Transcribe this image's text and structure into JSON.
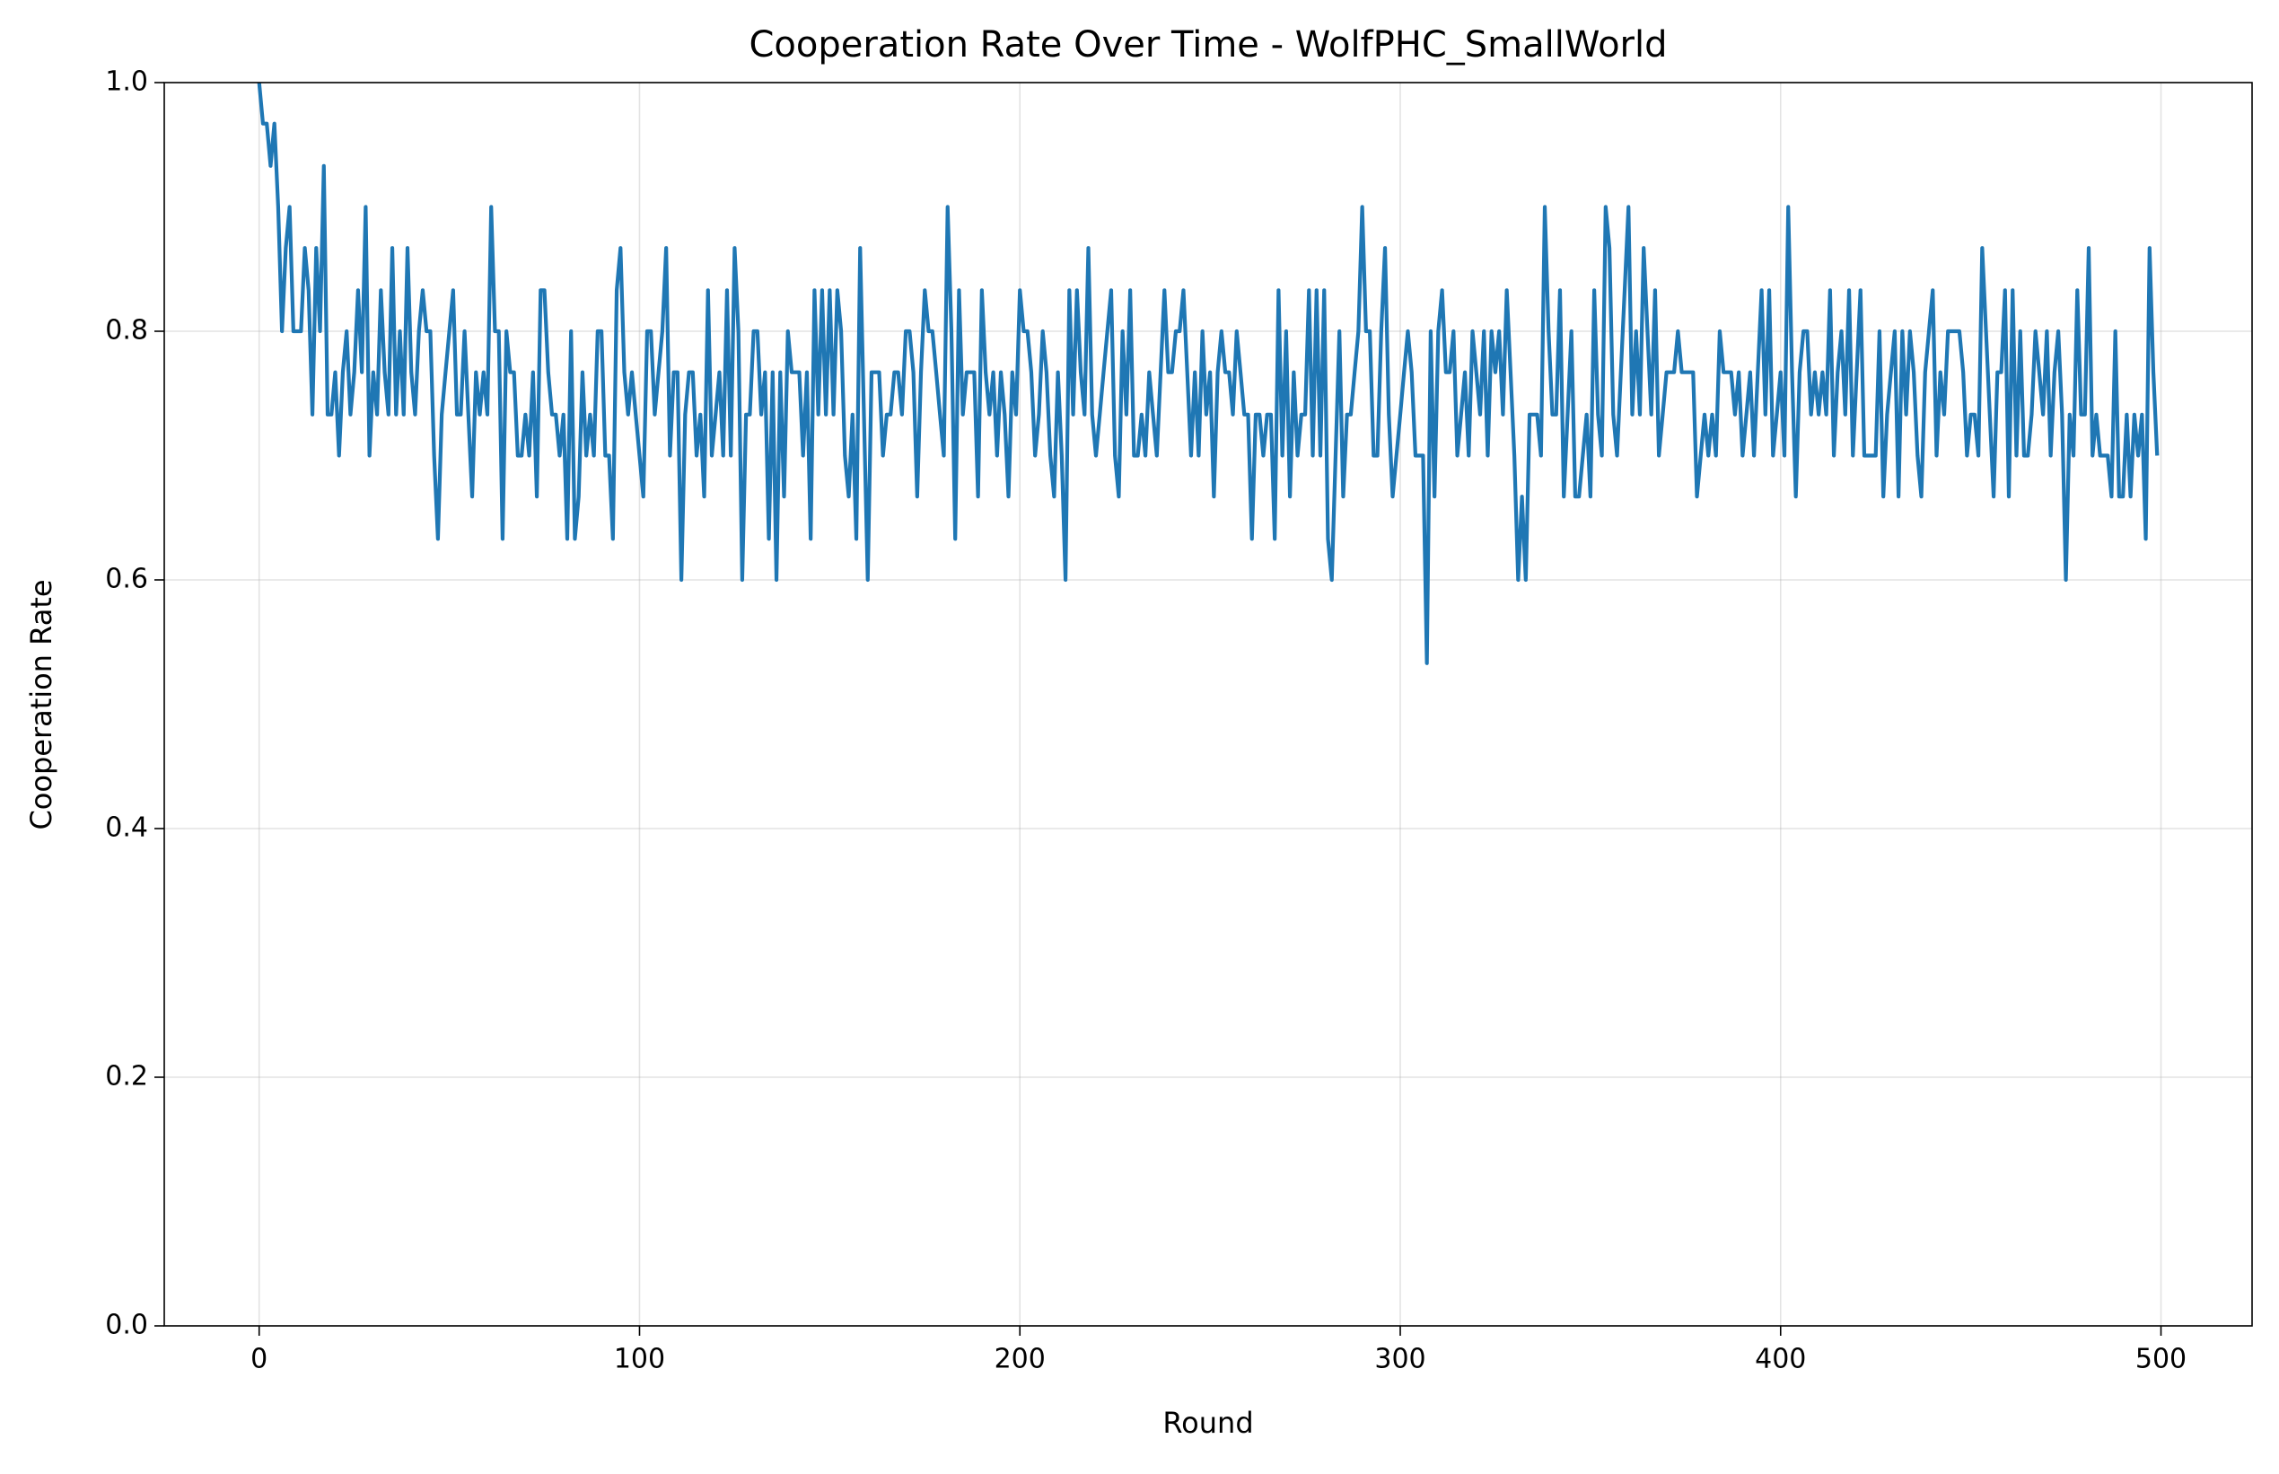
{
  "chart_data": {
    "type": "line",
    "title": "Cooperation Rate Over Time - WolfPHC_SmallWorld",
    "x_label": "Round",
    "y_label": "Cooperation Rate",
    "xlim": [
      -24.95,
      523.95
    ],
    "xticks": [
      0,
      100,
      200,
      300,
      400,
      500
    ],
    "ylim": [
      0,
      1
    ],
    "yticks": [
      {
        "value": 0,
        "label": "0.0"
      },
      0.2,
      0.4,
      0.6,
      0.8,
      {
        "value": 1,
        "label": "1.0"
      }
    ],
    "grid": true,
    "x": [
      0,
      1,
      2,
      3,
      4,
      5,
      6,
      7,
      8,
      9,
      10,
      11,
      12,
      13,
      14,
      15,
      16,
      17,
      18,
      19,
      20,
      21,
      22,
      23,
      24,
      25,
      26,
      27,
      28,
      29,
      30,
      31,
      32,
      33,
      34,
      35,
      36,
      37,
      38,
      39,
      40,
      41,
      42,
      43,
      44,
      45,
      46,
      47,
      48,
      49,
      50,
      51,
      52,
      53,
      54,
      55,
      56,
      57,
      58,
      59,
      60,
      61,
      62,
      63,
      64,
      65,
      66,
      67,
      68,
      69,
      70,
      71,
      72,
      73,
      74,
      75,
      76,
      77,
      78,
      79,
      80,
      81,
      82,
      83,
      84,
      85,
      86,
      87,
      88,
      89,
      90,
      91,
      92,
      93,
      94,
      95,
      96,
      97,
      98,
      99,
      100,
      101,
      102,
      103,
      104,
      105,
      106,
      107,
      108,
      109,
      110,
      111,
      112,
      113,
      114,
      115,
      116,
      117,
      118,
      119,
      120,
      121,
      122,
      123,
      124,
      125,
      126,
      127,
      128,
      129,
      130,
      131,
      132,
      133,
      134,
      135,
      136,
      137,
      138,
      139,
      140,
      141,
      142,
      143,
      144,
      145,
      146,
      147,
      148,
      149,
      150,
      151,
      152,
      153,
      154,
      155,
      156,
      157,
      158,
      159,
      160,
      161,
      162,
      163,
      164,
      165,
      166,
      167,
      168,
      169,
      170,
      171,
      172,
      173,
      174,
      175,
      176,
      177,
      178,
      179,
      180,
      181,
      182,
      183,
      184,
      185,
      186,
      187,
      188,
      189,
      190,
      191,
      192,
      193,
      194,
      195,
      196,
      197,
      198,
      199,
      200,
      201,
      202,
      203,
      204,
      205,
      206,
      207,
      208,
      209,
      210,
      211,
      212,
      213,
      214,
      215,
      216,
      217,
      218,
      219,
      220,
      221,
      222,
      223,
      224,
      225,
      226,
      227,
      228,
      229,
      230,
      231,
      232,
      233,
      234,
      235,
      236,
      237,
      238,
      239,
      240,
      241,
      242,
      243,
      244,
      245,
      246,
      247,
      248,
      249,
      250,
      251,
      252,
      253,
      254,
      255,
      256,
      257,
      258,
      259,
      260,
      261,
      262,
      263,
      264,
      265,
      266,
      267,
      268,
      269,
      270,
      271,
      272,
      273,
      274,
      275,
      276,
      277,
      278,
      279,
      280,
      281,
      282,
      283,
      284,
      285,
      286,
      287,
      288,
      289,
      290,
      291,
      292,
      293,
      294,
      295,
      296,
      297,
      298,
      299,
      300,
      301,
      302,
      303,
      304,
      305,
      306,
      307,
      308,
      309,
      310,
      311,
      312,
      313,
      314,
      315,
      316,
      317,
      318,
      319,
      320,
      321,
      322,
      323,
      324,
      325,
      326,
      327,
      328,
      329,
      330,
      331,
      332,
      333,
      334,
      335,
      336,
      337,
      338,
      339,
      340,
      341,
      342,
      343,
      344,
      345,
      346,
      347,
      348,
      349,
      350,
      351,
      352,
      353,
      354,
      355,
      356,
      357,
      358,
      359,
      360,
      361,
      362,
      363,
      364,
      365,
      366,
      367,
      368,
      369,
      370,
      371,
      372,
      373,
      374,
      375,
      376,
      377,
      378,
      379,
      380,
      381,
      382,
      383,
      384,
      385,
      386,
      387,
      388,
      389,
      390,
      391,
      392,
      393,
      394,
      395,
      396,
      397,
      398,
      399,
      400,
      401,
      402,
      403,
      404,
      405,
      406,
      407,
      408,
      409,
      410,
      411,
      412,
      413,
      414,
      415,
      416,
      417,
      418,
      419,
      420,
      421,
      422,
      423,
      424,
      425,
      426,
      427,
      428,
      429,
      430,
      431,
      432,
      433,
      434,
      435,
      436,
      437,
      438,
      439,
      440,
      441,
      442,
      443,
      444,
      445,
      446,
      447,
      448,
      449,
      450,
      451,
      452,
      453,
      454,
      455,
      456,
      457,
      458,
      459,
      460,
      461,
      462,
      463,
      464,
      465,
      466,
      467,
      468,
      469,
      470,
      471,
      472,
      473,
      474,
      475,
      476,
      477,
      478,
      479,
      480,
      481,
      482,
      483,
      484,
      485,
      486,
      487,
      488,
      489,
      490,
      491,
      492,
      493,
      494,
      495,
      496,
      497,
      498,
      499
    ],
    "series": [
      {
        "color": "#1f77b4",
        "values": [
          1.0,
          0.967,
          0.967,
          0.933,
          0.967,
          0.9,
          0.8,
          0.867,
          0.9,
          0.8,
          0.8,
          0.8,
          0.867,
          0.833,
          0.733,
          0.867,
          0.8,
          0.933,
          0.733,
          0.733,
          0.767,
          0.7,
          0.767,
          0.8,
          0.733,
          0.767,
          0.833,
          0.767,
          0.9,
          0.7,
          0.767,
          0.733,
          0.833,
          0.767,
          0.733,
          0.867,
          0.733,
          0.8,
          0.733,
          0.867,
          0.767,
          0.733,
          0.8,
          0.833,
          0.8,
          0.8,
          0.7,
          0.633,
          0.733,
          0.767,
          0.8,
          0.833,
          0.733,
          0.733,
          0.8,
          0.733,
          0.667,
          0.767,
          0.733,
          0.767,
          0.733,
          0.9,
          0.8,
          0.8,
          0.633,
          0.8,
          0.767,
          0.767,
          0.7,
          0.7,
          0.733,
          0.7,
          0.767,
          0.667,
          0.833,
          0.833,
          0.767,
          0.733,
          0.733,
          0.7,
          0.733,
          0.633,
          0.8,
          0.633,
          0.667,
          0.767,
          0.7,
          0.733,
          0.7,
          0.8,
          0.8,
          0.7,
          0.7,
          0.633,
          0.833,
          0.867,
          0.767,
          0.733,
          0.767,
          0.733,
          0.7,
          0.667,
          0.8,
          0.8,
          0.733,
          0.767,
          0.8,
          0.867,
          0.7,
          0.767,
          0.767,
          0.6,
          0.733,
          0.767,
          0.767,
          0.7,
          0.733,
          0.667,
          0.833,
          0.7,
          0.733,
          0.767,
          0.7,
          0.833,
          0.7,
          0.867,
          0.8,
          0.6,
          0.733,
          0.733,
          0.8,
          0.8,
          0.733,
          0.767,
          0.633,
          0.767,
          0.6,
          0.767,
          0.667,
          0.8,
          0.767,
          0.767,
          0.767,
          0.7,
          0.767,
          0.633,
          0.833,
          0.733,
          0.833,
          0.733,
          0.833,
          0.733,
          0.833,
          0.8,
          0.7,
          0.667,
          0.733,
          0.633,
          0.867,
          0.733,
          0.6,
          0.767,
          0.767,
          0.767,
          0.7,
          0.733,
          0.733,
          0.767,
          0.767,
          0.733,
          0.8,
          0.8,
          0.767,
          0.667,
          0.767,
          0.833,
          0.8,
          0.8,
          0.767,
          0.733,
          0.7,
          0.9,
          0.8,
          0.633,
          0.833,
          0.733,
          0.767,
          0.767,
          0.767,
          0.667,
          0.833,
          0.767,
          0.733,
          0.767,
          0.7,
          0.767,
          0.733,
          0.667,
          0.767,
          0.733,
          0.833,
          0.8,
          0.8,
          0.767,
          0.7,
          0.733,
          0.8,
          0.767,
          0.7,
          0.667,
          0.767,
          0.7,
          0.6,
          0.833,
          0.733,
          0.833,
          0.767,
          0.733,
          0.867,
          0.733,
          0.7,
          0.733,
          0.767,
          0.8,
          0.833,
          0.7,
          0.667,
          0.8,
          0.733,
          0.833,
          0.7,
          0.7,
          0.733,
          0.7,
          0.767,
          0.733,
          0.7,
          0.767,
          0.833,
          0.767,
          0.767,
          0.8,
          0.8,
          0.833,
          0.767,
          0.7,
          0.767,
          0.7,
          0.8,
          0.733,
          0.767,
          0.667,
          0.767,
          0.8,
          0.767,
          0.767,
          0.733,
          0.8,
          0.767,
          0.733,
          0.733,
          0.633,
          0.733,
          0.733,
          0.7,
          0.733,
          0.733,
          0.633,
          0.833,
          0.7,
          0.8,
          0.667,
          0.767,
          0.7,
          0.733,
          0.733,
          0.833,
          0.7,
          0.833,
          0.7,
          0.833,
          0.633,
          0.6,
          0.7,
          0.8,
          0.667,
          0.733,
          0.733,
          0.767,
          0.8,
          0.9,
          0.8,
          0.8,
          0.7,
          0.7,
          0.8,
          0.867,
          0.733,
          0.667,
          0.7,
          0.733,
          0.767,
          0.8,
          0.767,
          0.7,
          0.7,
          0.7,
          0.533,
          0.8,
          0.667,
          0.8,
          0.833,
          0.767,
          0.767,
          0.8,
          0.7,
          0.733,
          0.767,
          0.7,
          0.8,
          0.767,
          0.733,
          0.8,
          0.7,
          0.8,
          0.767,
          0.8,
          0.733,
          0.833,
          0.767,
          0.7,
          0.6,
          0.667,
          0.6,
          0.733,
          0.733,
          0.733,
          0.7,
          0.9,
          0.8,
          0.733,
          0.733,
          0.833,
          0.667,
          0.733,
          0.8,
          0.667,
          0.667,
          0.7,
          0.733,
          0.667,
          0.833,
          0.733,
          0.7,
          0.9,
          0.867,
          0.733,
          0.7,
          0.767,
          0.833,
          0.9,
          0.733,
          0.8,
          0.733,
          0.867,
          0.8,
          0.733,
          0.833,
          0.7,
          0.733,
          0.767,
          0.767,
          0.767,
          0.8,
          0.767,
          0.767,
          0.767,
          0.767,
          0.667,
          0.7,
          0.733,
          0.7,
          0.733,
          0.7,
          0.8,
          0.767,
          0.767,
          0.767,
          0.733,
          0.767,
          0.7,
          0.733,
          0.767,
          0.7,
          0.767,
          0.833,
          0.733,
          0.833,
          0.7,
          0.733,
          0.767,
          0.7,
          0.9,
          0.767,
          0.667,
          0.767,
          0.8,
          0.8,
          0.733,
          0.767,
          0.733,
          0.767,
          0.733,
          0.833,
          0.7,
          0.767,
          0.8,
          0.733,
          0.833,
          0.7,
          0.767,
          0.833,
          0.7,
          0.7,
          0.7,
          0.7,
          0.8,
          0.667,
          0.733,
          0.767,
          0.8,
          0.667,
          0.8,
          0.733,
          0.8,
          0.767,
          0.7,
          0.667,
          0.767,
          0.8,
          0.833,
          0.7,
          0.767,
          0.733,
          0.8,
          0.8,
          0.8,
          0.8,
          0.767,
          0.7,
          0.733,
          0.733,
          0.7,
          0.867,
          0.8,
          0.733,
          0.667,
          0.767,
          0.767,
          0.833,
          0.667,
          0.833,
          0.7,
          0.8,
          0.7,
          0.7,
          0.733,
          0.8,
          0.767,
          0.733,
          0.8,
          0.7,
          0.767,
          0.8,
          0.733,
          0.6,
          0.733,
          0.7,
          0.833,
          0.733,
          0.733,
          0.867,
          0.7,
          0.733,
          0.7,
          0.7,
          0.7,
          0.667,
          0.8,
          0.667,
          0.667,
          0.733,
          0.667,
          0.733,
          0.7,
          0.733,
          0.633,
          0.867,
          0.767,
          0.7
        ]
      }
    ]
  }
}
